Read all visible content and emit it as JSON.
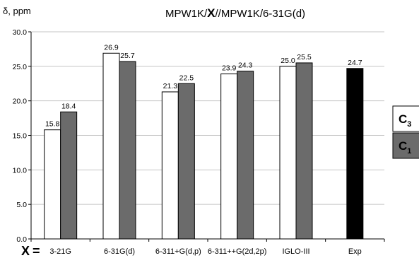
{
  "chart_data": {
    "type": "bar",
    "title": {
      "before": "MPW1K/",
      "var": "X",
      "after": "//MPW1K/6-31G(d)"
    },
    "ylabel": "δ, ppm",
    "x_prefix": {
      "var": "X",
      "sign": "="
    },
    "categories": [
      "3-21G",
      "6-31G(d)",
      "6-311+G(d,p)",
      "6-311++G(2d,2p)",
      "IGLO-III",
      "Exp"
    ],
    "series": [
      {
        "name": "C3",
        "color": "#ffffff",
        "values": [
          15.8,
          26.9,
          21.3,
          23.9,
          25.0,
          null
        ],
        "labels": [
          "15.8",
          "26.9",
          "21.3",
          "23.9",
          "25.0",
          ""
        ]
      },
      {
        "name": "C1",
        "color": "#6b6b6b",
        "values": [
          18.4,
          25.7,
          22.5,
          24.3,
          25.5,
          null
        ],
        "labels": [
          "18.4",
          "25.7",
          "22.5",
          "24.3",
          "25.5",
          ""
        ]
      }
    ],
    "exp": {
      "value": 24.7,
      "label": "24.7",
      "color": "#000000"
    },
    "ylim": [
      0,
      30
    ],
    "yticks": [
      "0.0",
      "5.0",
      "10.0",
      "15.0",
      "20.0",
      "25.0",
      "30.0"
    ],
    "grid": "horizontal",
    "legend": [
      {
        "main": "C",
        "sub": "3",
        "fill": "#ffffff"
      },
      {
        "main": "C",
        "sub": "1",
        "fill": "#6b6b6b"
      }
    ]
  }
}
